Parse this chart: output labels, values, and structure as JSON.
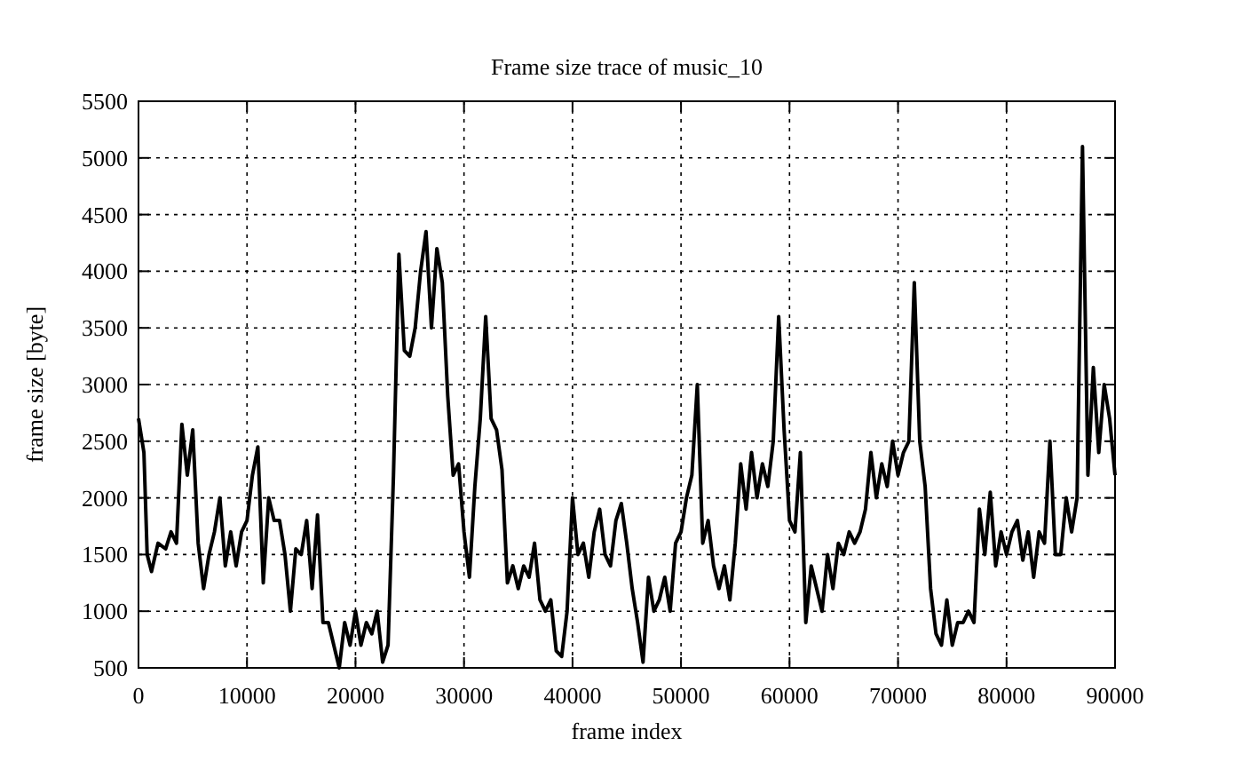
{
  "chart_data": {
    "type": "line",
    "title": "Frame size trace of music_10",
    "xlabel": "frame index",
    "ylabel": "frame size [byte]",
    "x": [
      0,
      500,
      800,
      1200,
      1800,
      2500,
      3000,
      3500,
      4000,
      4500,
      5000,
      5500,
      6000,
      6500,
      7000,
      7500,
      8000,
      8500,
      9000,
      9500,
      10000,
      10500,
      11000,
      11500,
      12000,
      12500,
      13000,
      13500,
      14000,
      14500,
      15000,
      15500,
      16000,
      16500,
      17000,
      17500,
      18000,
      18500,
      19000,
      19500,
      20000,
      20500,
      21000,
      21500,
      22000,
      22500,
      23000,
      23500,
      24000,
      24500,
      25000,
      25500,
      26000,
      26500,
      27000,
      27500,
      28000,
      28500,
      29000,
      29500,
      30000,
      30500,
      31000,
      31500,
      32000,
      32500,
      33000,
      33500,
      34000,
      34500,
      35000,
      35500,
      36000,
      36500,
      37000,
      37500,
      38000,
      38500,
      39000,
      39500,
      40000,
      40500,
      41000,
      41500,
      42000,
      42500,
      43000,
      43500,
      44000,
      44500,
      45000,
      45500,
      46000,
      46500,
      47000,
      47500,
      48000,
      48500,
      49000,
      49500,
      50000,
      50500,
      51000,
      51500,
      52000,
      52500,
      53000,
      53500,
      54000,
      54500,
      55000,
      55500,
      56000,
      56500,
      57000,
      57500,
      58000,
      58500,
      59000,
      59500,
      60000,
      60500,
      61000,
      61500,
      62000,
      62500,
      63000,
      63500,
      64000,
      64500,
      65000,
      65500,
      66000,
      66500,
      67000,
      67500,
      68000,
      68500,
      69000,
      69500,
      70000,
      70500,
      71000,
      71500,
      72000,
      72500,
      73000,
      73500,
      74000,
      74500,
      75000,
      75500,
      76000,
      76500,
      77000,
      77500,
      78000,
      78500,
      79000,
      79500,
      80000,
      80500,
      81000,
      81500,
      82000,
      82500,
      83000,
      83500,
      84000,
      84500,
      85000,
      85500,
      86000,
      86500,
      87000,
      87500,
      88000,
      88500,
      89000,
      89500,
      90000
    ],
    "series": [
      {
        "color": "#000000",
        "values": [
          2700,
          2400,
          1500,
          1350,
          1600,
          1550,
          1700,
          1600,
          2650,
          2200,
          2600,
          1600,
          1200,
          1500,
          1700,
          2000,
          1400,
          1700,
          1400,
          1700,
          1800,
          2200,
          2450,
          1250,
          2000,
          1800,
          1800,
          1500,
          1000,
          1550,
          1500,
          1800,
          1200,
          1850,
          900,
          900,
          700,
          500,
          900,
          700,
          1000,
          700,
          900,
          800,
          1000,
          550,
          700,
          2200,
          4150,
          3300,
          3250,
          3500,
          4000,
          4350,
          3500,
          4200,
          3900,
          2900,
          2200,
          2300,
          1700,
          1300,
          2100,
          2700,
          3600,
          2700,
          2600,
          2250,
          1250,
          1400,
          1200,
          1400,
          1300,
          1600,
          1100,
          1000,
          1100,
          650,
          600,
          1000,
          2000,
          1500,
          1600,
          1300,
          1700,
          1900,
          1500,
          1400,
          1800,
          1950,
          1600,
          1200,
          900,
          550,
          1300,
          1000,
          1100,
          1300,
          1000,
          1600,
          1700,
          2000,
          2200,
          3000,
          1600,
          1800,
          1400,
          1200,
          1400,
          1100,
          1600,
          2300,
          1900,
          2400,
          2000,
          2300,
          2100,
          2500,
          3600,
          2600,
          1800,
          1700,
          2400,
          900,
          1400,
          1200,
          1000,
          1500,
          1200,
          1600,
          1500,
          1700,
          1600,
          1700,
          1900,
          2400,
          2000,
          2300,
          2100,
          2500,
          2200,
          2400,
          2500,
          3900,
          2500,
          2100,
          1200,
          800,
          700,
          1100,
          700,
          900,
          900,
          1000,
          900,
          1900,
          1500,
          2050,
          1400,
          1700,
          1500,
          1700,
          1800,
          1450,
          1700,
          1300,
          1700,
          1600,
          2500,
          1500,
          1500,
          2000,
          1700,
          2000,
          5100,
          2200,
          3150,
          2400,
          3000,
          2700,
          2200
        ]
      }
    ],
    "xlim": [
      0,
      90000
    ],
    "ylim": [
      500,
      5500
    ],
    "xticks": [
      0,
      10000,
      20000,
      30000,
      40000,
      50000,
      60000,
      70000,
      80000,
      90000
    ],
    "yticks": [
      500,
      1000,
      1500,
      2000,
      2500,
      3000,
      3500,
      4000,
      4500,
      5000,
      5500
    ],
    "grid": true,
    "line_style": "solid"
  }
}
